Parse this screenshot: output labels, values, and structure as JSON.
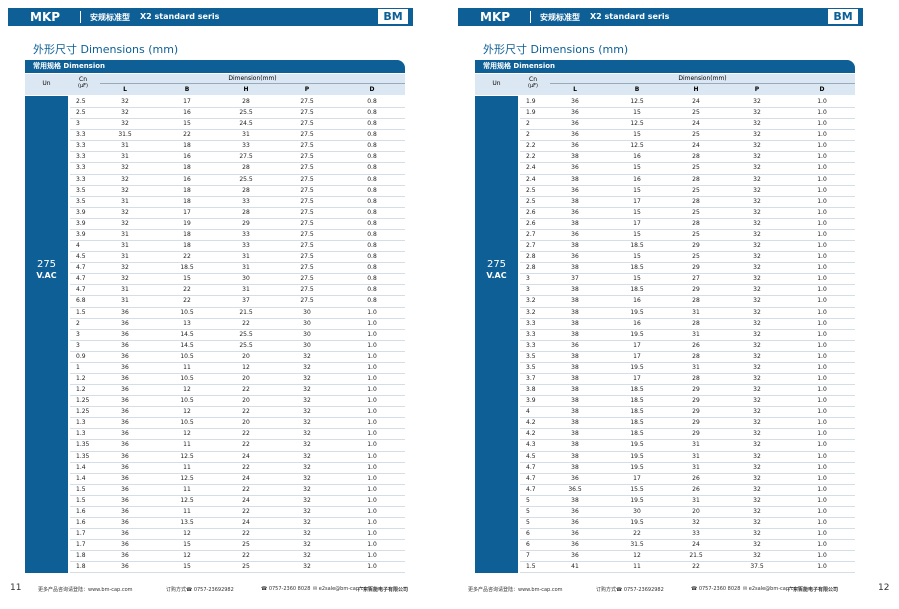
{
  "pages": [
    {
      "header": {
        "brand": "MKP",
        "series": "安规标准型",
        "series_en": "X2 standard seris",
        "logo": "BM"
      },
      "title": "外形尺寸 Dimensions (mm)",
      "table": {
        "section": "常用规格 Dimension",
        "un_header": "Un",
        "cn_header": "Cn",
        "cn_unit": "(μF)",
        "dimension_header": "Dimension(mm)",
        "columns": [
          "L",
          "B",
          "H",
          "P",
          "D"
        ],
        "un_value": "275",
        "un_unit": "V.AC",
        "rows": [
          [
            "2.5",
            "32",
            "17",
            "28",
            "27.5",
            "0.8"
          ],
          [
            "2.5",
            "32",
            "16",
            "25.5",
            "27.5",
            "0.8"
          ],
          [
            "3",
            "32",
            "15",
            "24.5",
            "27.5",
            "0.8"
          ],
          [
            "3.3",
            "31.5",
            "22",
            "31",
            "27.5",
            "0.8"
          ],
          [
            "3.3",
            "31",
            "18",
            "33",
            "27.5",
            "0.8"
          ],
          [
            "3.3",
            "31",
            "16",
            "27.5",
            "27.5",
            "0.8"
          ],
          [
            "3.3",
            "32",
            "18",
            "28",
            "27.5",
            "0.8"
          ],
          [
            "3.3",
            "32",
            "16",
            "25.5",
            "27.5",
            "0.8"
          ],
          [
            "3.5",
            "32",
            "18",
            "28",
            "27.5",
            "0.8"
          ],
          [
            "3.5",
            "31",
            "18",
            "33",
            "27.5",
            "0.8"
          ],
          [
            "3.9",
            "32",
            "17",
            "28",
            "27.5",
            "0.8"
          ],
          [
            "3.9",
            "32",
            "19",
            "29",
            "27.5",
            "0.8"
          ],
          [
            "3.9",
            "31",
            "18",
            "33",
            "27.5",
            "0.8"
          ],
          [
            "4",
            "31",
            "18",
            "33",
            "27.5",
            "0.8"
          ],
          [
            "4.5",
            "31",
            "22",
            "31",
            "27.5",
            "0.8"
          ],
          [
            "4.7",
            "32",
            "18.5",
            "31",
            "27.5",
            "0.8"
          ],
          [
            "4.7",
            "32",
            "15",
            "30",
            "27.5",
            "0.8"
          ],
          [
            "4.7",
            "31",
            "22",
            "31",
            "27.5",
            "0.8"
          ],
          [
            "6.8",
            "31",
            "22",
            "37",
            "27.5",
            "0.8"
          ],
          [
            "1.5",
            "36",
            "10.5",
            "21.5",
            "30",
            "1.0"
          ],
          [
            "2",
            "36",
            "13",
            "22",
            "30",
            "1.0"
          ],
          [
            "3",
            "36",
            "14.5",
            "25.5",
            "30",
            "1.0"
          ],
          [
            "3",
            "36",
            "14.5",
            "25.5",
            "30",
            "1.0"
          ],
          [
            "0.9",
            "36",
            "10.5",
            "20",
            "32",
            "1.0"
          ],
          [
            "1",
            "36",
            "11",
            "12",
            "32",
            "1.0"
          ],
          [
            "1.2",
            "36",
            "10.5",
            "20",
            "32",
            "1.0"
          ],
          [
            "1.2",
            "36",
            "12",
            "22",
            "32",
            "1.0"
          ],
          [
            "1.25",
            "36",
            "10.5",
            "20",
            "32",
            "1.0"
          ],
          [
            "1.25",
            "36",
            "12",
            "22",
            "32",
            "1.0"
          ],
          [
            "1.3",
            "36",
            "10.5",
            "20",
            "32",
            "1.0"
          ],
          [
            "1.3",
            "36",
            "12",
            "22",
            "32",
            "1.0"
          ],
          [
            "1.35",
            "36",
            "11",
            "22",
            "32",
            "1.0"
          ],
          [
            "1.35",
            "36",
            "12.5",
            "24",
            "32",
            "1.0"
          ],
          [
            "1.4",
            "36",
            "11",
            "22",
            "32",
            "1.0"
          ],
          [
            "1.4",
            "36",
            "12.5",
            "24",
            "32",
            "1.0"
          ],
          [
            "1.5",
            "36",
            "11",
            "22",
            "32",
            "1.0"
          ],
          [
            "1.5",
            "36",
            "12.5",
            "24",
            "32",
            "1.0"
          ],
          [
            "1.6",
            "36",
            "11",
            "22",
            "32",
            "1.0"
          ],
          [
            "1.6",
            "36",
            "13.5",
            "24",
            "32",
            "1.0"
          ],
          [
            "1.7",
            "36",
            "12",
            "22",
            "32",
            "1.0"
          ],
          [
            "1.7",
            "36",
            "15",
            "25",
            "32",
            "1.0"
          ],
          [
            "1.8",
            "36",
            "12",
            "22",
            "32",
            "1.0"
          ],
          [
            "1.8",
            "36",
            "15",
            "25",
            "32",
            "1.0"
          ]
        ]
      },
      "footer": {
        "page_number": "11",
        "website": "更多产品咨询请登陆：www.bm-cap.com",
        "order": "订购方式☎ 0757-23692982",
        "fax": "☎ 0757-2360 8028",
        "email": "✉ e2sale@bm-cap.com",
        "company": "广东百能电子有限公司"
      }
    },
    {
      "header": {
        "brand": "MKP",
        "series": "安规标准型",
        "series_en": "X2 standard seris",
        "logo": "BM"
      },
      "title": "外形尺寸 Dimensions (mm)",
      "table": {
        "section": "常用规格 Dimension",
        "un_header": "Un",
        "cn_header": "Cn",
        "cn_unit": "(μF)",
        "dimension_header": "Dimension(mm)",
        "columns": [
          "L",
          "B",
          "H",
          "P",
          "D"
        ],
        "un_value": "275",
        "un_unit": "V.AC",
        "rows": [
          [
            "1.9",
            "36",
            "12.5",
            "24",
            "32",
            "1.0"
          ],
          [
            "1.9",
            "36",
            "15",
            "25",
            "32",
            "1.0"
          ],
          [
            "2",
            "36",
            "12.5",
            "24",
            "32",
            "1.0"
          ],
          [
            "2",
            "36",
            "15",
            "25",
            "32",
            "1.0"
          ],
          [
            "2.2",
            "36",
            "12.5",
            "24",
            "32",
            "1.0"
          ],
          [
            "2.2",
            "38",
            "16",
            "28",
            "32",
            "1.0"
          ],
          [
            "2.4",
            "36",
            "15",
            "25",
            "32",
            "1.0"
          ],
          [
            "2.4",
            "38",
            "16",
            "28",
            "32",
            "1.0"
          ],
          [
            "2.5",
            "36",
            "15",
            "25",
            "32",
            "1.0"
          ],
          [
            "2.5",
            "38",
            "17",
            "28",
            "32",
            "1.0"
          ],
          [
            "2.6",
            "36",
            "15",
            "25",
            "32",
            "1.0"
          ],
          [
            "2.6",
            "38",
            "17",
            "28",
            "32",
            "1.0"
          ],
          [
            "2.7",
            "36",
            "15",
            "25",
            "32",
            "1.0"
          ],
          [
            "2.7",
            "38",
            "18.5",
            "29",
            "32",
            "1.0"
          ],
          [
            "2.8",
            "36",
            "15",
            "25",
            "32",
            "1.0"
          ],
          [
            "2.8",
            "38",
            "18.5",
            "29",
            "32",
            "1.0"
          ],
          [
            "3",
            "37",
            "15",
            "27",
            "32",
            "1.0"
          ],
          [
            "3",
            "38",
            "18.5",
            "29",
            "32",
            "1.0"
          ],
          [
            "3.2",
            "38",
            "16",
            "28",
            "32",
            "1.0"
          ],
          [
            "3.2",
            "38",
            "19.5",
            "31",
            "32",
            "1.0"
          ],
          [
            "3.3",
            "38",
            "16",
            "28",
            "32",
            "1.0"
          ],
          [
            "3.3",
            "38",
            "19.5",
            "31",
            "32",
            "1.0"
          ],
          [
            "3.3",
            "36",
            "17",
            "26",
            "32",
            "1.0"
          ],
          [
            "3.5",
            "38",
            "17",
            "28",
            "32",
            "1.0"
          ],
          [
            "3.5",
            "38",
            "19.5",
            "31",
            "32",
            "1.0"
          ],
          [
            "3.7",
            "38",
            "17",
            "28",
            "32",
            "1.0"
          ],
          [
            "3.8",
            "38",
            "18.5",
            "29",
            "32",
            "1.0"
          ],
          [
            "3.9",
            "38",
            "18.5",
            "29",
            "32",
            "1.0"
          ],
          [
            "4",
            "38",
            "18.5",
            "29",
            "32",
            "1.0"
          ],
          [
            "4.2",
            "38",
            "18.5",
            "29",
            "32",
            "1.0"
          ],
          [
            "4.2",
            "38",
            "18.5",
            "29",
            "32",
            "1.0"
          ],
          [
            "4.3",
            "38",
            "19.5",
            "31",
            "32",
            "1.0"
          ],
          [
            "4.5",
            "38",
            "19.5",
            "31",
            "32",
            "1.0"
          ],
          [
            "4.7",
            "38",
            "19.5",
            "31",
            "32",
            "1.0"
          ],
          [
            "4.7",
            "36",
            "17",
            "26",
            "32",
            "1.0"
          ],
          [
            "4.7",
            "36.5",
            "15.5",
            "26",
            "32",
            "1.0"
          ],
          [
            "5",
            "38",
            "19.5",
            "31",
            "32",
            "1.0"
          ],
          [
            "5",
            "36",
            "30",
            "20",
            "32",
            "1.0"
          ],
          [
            "5",
            "36",
            "19.5",
            "32",
            "32",
            "1.0"
          ],
          [
            "6",
            "36",
            "22",
            "33",
            "32",
            "1.0"
          ],
          [
            "6",
            "36",
            "31.5",
            "24",
            "32",
            "1.0"
          ],
          [
            "7",
            "36",
            "12",
            "21.5",
            "32",
            "1.0"
          ],
          [
            "1.5",
            "41",
            "11",
            "22",
            "37.5",
            "1.0"
          ]
        ]
      },
      "footer": {
        "page_number": "12",
        "website": "更多产品咨询请登陆：www.bm-cap.com",
        "order": "订购方式☎ 0757-23692982",
        "fax": "☎ 0757-2360 8028",
        "email": "✉ e2sale@bm-cap.com",
        "company": "广东百能电子有限公司"
      }
    }
  ]
}
